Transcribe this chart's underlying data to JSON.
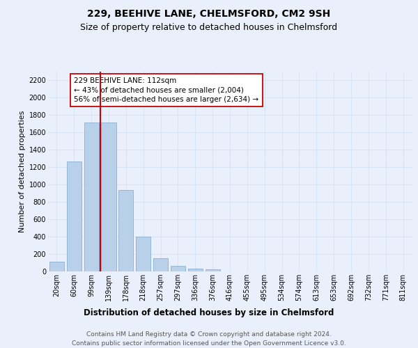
{
  "title1": "229, BEEHIVE LANE, CHELMSFORD, CM2 9SH",
  "title2": "Size of property relative to detached houses in Chelmsford",
  "xlabel": "Distribution of detached houses by size in Chelmsford",
  "ylabel": "Number of detached properties",
  "footer1": "Contains HM Land Registry data © Crown copyright and database right 2024.",
  "footer2": "Contains public sector information licensed under the Open Government Licence v3.0.",
  "bar_labels": [
    "20sqm",
    "60sqm",
    "99sqm",
    "139sqm",
    "178sqm",
    "218sqm",
    "257sqm",
    "297sqm",
    "336sqm",
    "376sqm",
    "416sqm",
    "455sqm",
    "495sqm",
    "534sqm",
    "574sqm",
    "613sqm",
    "653sqm",
    "692sqm",
    "732sqm",
    "771sqm",
    "811sqm"
  ],
  "bar_values": [
    110,
    1265,
    1715,
    1715,
    940,
    400,
    150,
    65,
    35,
    22,
    0,
    0,
    0,
    0,
    0,
    0,
    0,
    0,
    0,
    0,
    0
  ],
  "bar_color": "#b8d0ea",
  "bar_edge_color": "#8ab0d4",
  "vline_x": 2.5,
  "vline_color": "#cc0000",
  "annotation_text": "229 BEEHIVE LANE: 112sqm\n← 43% of detached houses are smaller (2,004)\n56% of semi-detached houses are larger (2,634) →",
  "ylim": [
    0,
    2300
  ],
  "yticks": [
    0,
    200,
    400,
    600,
    800,
    1000,
    1200,
    1400,
    1600,
    1800,
    2000,
    2200
  ],
  "bg_color": "#eaf0fb",
  "grid_color": "#d8e4f4",
  "title_fontsize": 10,
  "subtitle_fontsize": 9,
  "axis_label_fontsize": 8.5,
  "tick_fontsize": 7,
  "ylabel_fontsize": 8
}
